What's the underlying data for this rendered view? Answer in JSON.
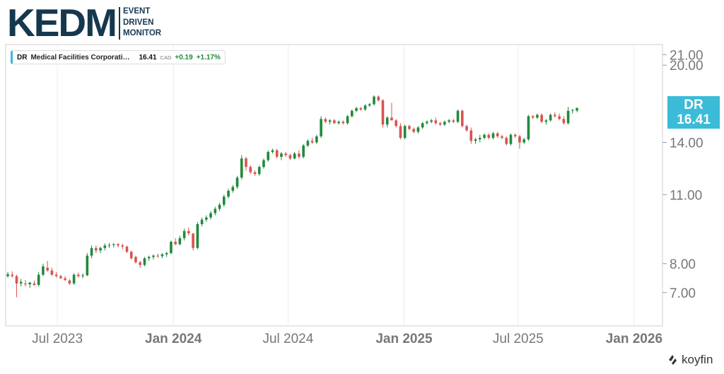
{
  "logo": {
    "main": "KEDM",
    "line1": "EVENT",
    "line2": "DRIVEN",
    "line3": "MONITOR"
  },
  "legend": {
    "ticker": "DR",
    "name": "Medical Facilities Corporati…",
    "price": "16.41",
    "currency": "CAD",
    "change": "+0.19",
    "change_pct": "+1.17%"
  },
  "price_tag": {
    "ticker": "DR",
    "price": "16.41"
  },
  "brand": "koyfin",
  "colors": {
    "up": "#1f8a3b",
    "down": "#d9534f",
    "accent": "#3bbbd8"
  },
  "chart_data": {
    "type": "candlestick",
    "title": "",
    "y_scale": "log",
    "ylim": [
      6.0,
      22.0
    ],
    "x_range": [
      "2023-04-10",
      "2026-02-15"
    ],
    "y_ticks": [
      {
        "value": 21.0,
        "label": "21.00"
      },
      {
        "value": 20.0,
        "label": "20.00"
      },
      {
        "value": 14.0,
        "label": "14.00"
      },
      {
        "value": 11.0,
        "label": "11.00"
      },
      {
        "value": 8.0,
        "label": "8.00"
      },
      {
        "value": 7.0,
        "label": "7.00"
      }
    ],
    "x_ticks": [
      {
        "date": "2023-07-01",
        "label": "Jul 2023",
        "bold": false
      },
      {
        "date": "2024-01-01",
        "label": "Jan 2024",
        "bold": true
      },
      {
        "date": "2024-07-01",
        "label": "Jul 2024",
        "bold": false
      },
      {
        "date": "2025-01-01",
        "label": "Jan 2025",
        "bold": true
      },
      {
        "date": "2025-07-01",
        "label": "Jul 2025",
        "bold": false
      },
      {
        "date": "2026-01-01",
        "label": "Jan 2026",
        "bold": true
      }
    ],
    "interval": "weekly",
    "start_date": "2023-04-10",
    "candles": [
      [
        7.55,
        7.7,
        7.5,
        7.62
      ],
      [
        7.6,
        7.72,
        7.5,
        7.55
      ],
      [
        7.55,
        7.6,
        6.85,
        7.3
      ],
      [
        7.3,
        7.45,
        7.2,
        7.35
      ],
      [
        7.3,
        7.42,
        7.2,
        7.27
      ],
      [
        7.27,
        7.35,
        7.15,
        7.33
      ],
      [
        7.3,
        7.4,
        7.22,
        7.25
      ],
      [
        7.25,
        7.7,
        7.2,
        7.6
      ],
      [
        7.6,
        8.0,
        7.55,
        7.9
      ],
      [
        7.85,
        8.1,
        7.7,
        7.75
      ],
      [
        7.75,
        7.85,
        7.55,
        7.6
      ],
      [
        7.6,
        7.7,
        7.5,
        7.55
      ],
      [
        7.55,
        7.6,
        7.45,
        7.48
      ],
      [
        7.48,
        7.55,
        7.38,
        7.42
      ],
      [
        7.4,
        7.45,
        7.25,
        7.3
      ],
      [
        7.3,
        7.65,
        7.25,
        7.6
      ],
      [
        7.6,
        7.68,
        7.5,
        7.55
      ],
      [
        7.55,
        7.65,
        7.48,
        7.58
      ],
      [
        7.58,
        8.4,
        7.55,
        8.3
      ],
      [
        8.3,
        8.7,
        8.2,
        8.6
      ],
      [
        8.6,
        8.7,
        8.4,
        8.5
      ],
      [
        8.5,
        8.65,
        8.4,
        8.6
      ],
      [
        8.6,
        8.78,
        8.5,
        8.7
      ],
      [
        8.7,
        8.8,
        8.6,
        8.72
      ],
      [
        8.72,
        8.8,
        8.62,
        8.75
      ],
      [
        8.75,
        8.8,
        8.62,
        8.7
      ],
      [
        8.7,
        8.78,
        8.55,
        8.65
      ],
      [
        8.65,
        8.7,
        8.4,
        8.45
      ],
      [
        8.45,
        8.5,
        8.15,
        8.2
      ],
      [
        8.25,
        8.3,
        8.0,
        8.05
      ],
      [
        8.05,
        8.1,
        7.85,
        7.95
      ],
      [
        7.95,
        8.25,
        7.9,
        8.2
      ],
      [
        8.2,
        8.3,
        8.1,
        8.25
      ],
      [
        8.25,
        8.35,
        8.15,
        8.3
      ],
      [
        8.3,
        8.38,
        8.22,
        8.28
      ],
      [
        8.28,
        8.4,
        8.2,
        8.35
      ],
      [
        8.35,
        8.45,
        8.25,
        8.4
      ],
      [
        8.4,
        8.9,
        8.35,
        8.85
      ],
      [
        8.85,
        9.0,
        8.7,
        8.75
      ],
      [
        8.75,
        9.1,
        8.7,
        9.0
      ],
      [
        9.0,
        9.4,
        8.9,
        9.3
      ],
      [
        9.3,
        9.45,
        9.1,
        9.2
      ],
      [
        9.2,
        9.1,
        8.5,
        8.6
      ],
      [
        8.6,
        9.7,
        8.55,
        9.6
      ],
      [
        9.6,
        9.9,
        9.5,
        9.8
      ],
      [
        9.8,
        10.0,
        9.7,
        9.9
      ],
      [
        9.9,
        10.2,
        9.8,
        10.1
      ],
      [
        10.1,
        10.4,
        10.0,
        10.3
      ],
      [
        10.3,
        10.6,
        10.2,
        10.5
      ],
      [
        10.5,
        11.0,
        10.4,
        10.9
      ],
      [
        10.9,
        11.3,
        10.8,
        11.2
      ],
      [
        11.2,
        11.5,
        11.1,
        11.4
      ],
      [
        11.4,
        12.0,
        11.3,
        11.9
      ],
      [
        11.9,
        13.2,
        11.8,
        13.0
      ],
      [
        13.0,
        13.1,
        12.3,
        12.5
      ],
      [
        12.5,
        12.6,
        12.1,
        12.2
      ],
      [
        12.2,
        12.3,
        12.0,
        12.1
      ],
      [
        12.1,
        12.6,
        12.0,
        12.5
      ],
      [
        12.5,
        13.0,
        12.4,
        12.9
      ],
      [
        12.9,
        13.5,
        12.8,
        13.4
      ],
      [
        13.4,
        13.6,
        13.3,
        13.5
      ],
      [
        13.5,
        13.6,
        13.0,
        13.1
      ],
      [
        13.1,
        13.4,
        12.9,
        13.3
      ],
      [
        13.3,
        13.4,
        13.1,
        13.2
      ],
      [
        13.2,
        13.3,
        12.9,
        13.0
      ],
      [
        13.0,
        13.4,
        12.95,
        13.3
      ],
      [
        13.3,
        13.5,
        13.0,
        13.1
      ],
      [
        13.1,
        13.9,
        13.0,
        13.8
      ],
      [
        13.8,
        14.2,
        13.7,
        14.1
      ],
      [
        14.1,
        14.3,
        13.9,
        14.0
      ],
      [
        14.0,
        14.5,
        13.9,
        14.4
      ],
      [
        14.4,
        15.8,
        14.3,
        15.6
      ],
      [
        15.6,
        15.7,
        15.3,
        15.4
      ],
      [
        15.4,
        15.6,
        15.2,
        15.5
      ],
      [
        15.5,
        15.6,
        15.25,
        15.3
      ],
      [
        15.3,
        15.5,
        15.2,
        15.4
      ],
      [
        15.4,
        15.5,
        15.2,
        15.3
      ],
      [
        15.3,
        15.9,
        15.2,
        15.8
      ],
      [
        15.8,
        16.3,
        15.7,
        16.2
      ],
      [
        16.2,
        16.5,
        16.1,
        16.4
      ],
      [
        16.4,
        16.5,
        16.2,
        16.3
      ],
      [
        16.3,
        16.7,
        16.2,
        16.6
      ],
      [
        16.6,
        16.8,
        16.5,
        16.7
      ],
      [
        16.7,
        17.4,
        16.6,
        17.3
      ],
      [
        17.3,
        17.4,
        16.9,
        17.0
      ],
      [
        17.0,
        17.1,
        15.0,
        15.2
      ],
      [
        15.2,
        15.8,
        15.0,
        15.7
      ],
      [
        15.7,
        16.8,
        15.5,
        15.5
      ],
      [
        15.5,
        15.6,
        15.0,
        15.1
      ],
      [
        15.1,
        15.3,
        14.2,
        14.3
      ],
      [
        14.3,
        15.2,
        14.2,
        15.1
      ],
      [
        15.1,
        15.2,
        14.8,
        14.9
      ],
      [
        14.9,
        15.0,
        14.6,
        14.7
      ],
      [
        14.7,
        15.1,
        14.6,
        15.0
      ],
      [
        15.0,
        15.4,
        14.9,
        15.3
      ],
      [
        15.3,
        15.5,
        15.2,
        15.4
      ],
      [
        15.4,
        15.6,
        15.3,
        15.5
      ],
      [
        15.5,
        15.7,
        15.2,
        15.3
      ],
      [
        15.3,
        15.4,
        15.1,
        15.2
      ],
      [
        15.2,
        15.5,
        15.1,
        15.4
      ],
      [
        15.4,
        15.6,
        15.3,
        15.5
      ],
      [
        15.5,
        15.6,
        15.3,
        15.4
      ],
      [
        15.4,
        16.3,
        15.3,
        16.2
      ],
      [
        16.2,
        16.3,
        15.0,
        15.1
      ],
      [
        15.1,
        15.2,
        14.7,
        14.8
      ],
      [
        14.8,
        15.0,
        13.9,
        14.1
      ],
      [
        14.1,
        14.3,
        13.9,
        14.2
      ],
      [
        14.2,
        14.5,
        14.0,
        14.3
      ],
      [
        14.3,
        14.6,
        14.2,
        14.5
      ],
      [
        14.5,
        14.6,
        14.2,
        14.3
      ],
      [
        14.3,
        14.7,
        14.2,
        14.6
      ],
      [
        14.6,
        14.7,
        14.3,
        14.4
      ],
      [
        14.4,
        14.5,
        14.2,
        14.3
      ],
      [
        14.3,
        14.4,
        13.8,
        13.9
      ],
      [
        13.9,
        14.6,
        13.8,
        14.5
      ],
      [
        14.5,
        14.6,
        14.3,
        14.4
      ],
      [
        14.4,
        14.5,
        13.6,
        14.0
      ],
      [
        14.0,
        14.3,
        13.9,
        14.2
      ],
      [
        14.2,
        15.9,
        14.1,
        15.8
      ],
      [
        15.8,
        15.9,
        15.6,
        15.7
      ],
      [
        15.7,
        16.0,
        15.6,
        15.9
      ],
      [
        15.9,
        16.0,
        15.3,
        15.4
      ],
      [
        15.4,
        15.6,
        15.2,
        15.5
      ],
      [
        15.5,
        16.0,
        15.4,
        15.9
      ],
      [
        15.9,
        16.1,
        15.7,
        15.8
      ],
      [
        15.8,
        16.0,
        15.5,
        15.6
      ],
      [
        15.6,
        15.8,
        15.2,
        15.3
      ],
      [
        15.3,
        16.5,
        15.2,
        16.2
      ],
      [
        16.2,
        16.35,
        16.0,
        16.25
      ],
      [
        16.22,
        16.45,
        16.1,
        16.41
      ]
    ]
  }
}
